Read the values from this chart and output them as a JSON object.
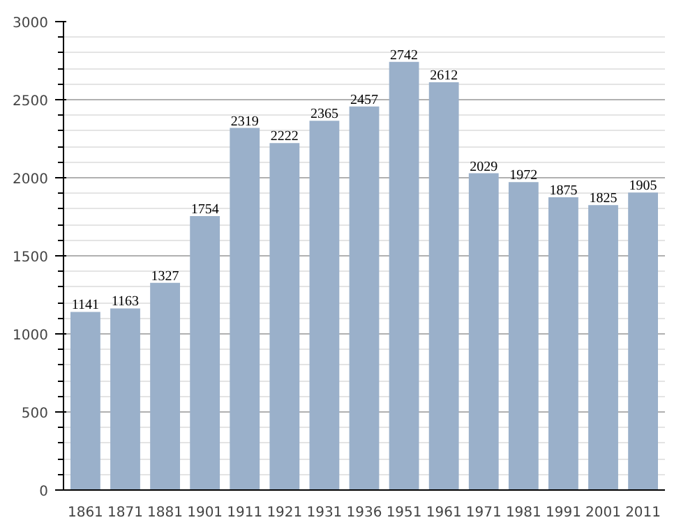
{
  "chart_data": {
    "type": "bar",
    "categories": [
      "1861",
      "1871",
      "1881",
      "1901",
      "1911",
      "1921",
      "1931",
      "1936",
      "1951",
      "1961",
      "1971",
      "1981",
      "1991",
      "2001",
      "2011"
    ],
    "values": [
      1141,
      1163,
      1327,
      1754,
      2319,
      2222,
      2365,
      2457,
      2742,
      2612,
      2029,
      1972,
      1875,
      1825,
      1905
    ],
    "color": "#9ab0ca",
    "data_labels": true,
    "grid": "y",
    "ylim": [
      0,
      3000
    ],
    "yticks": [
      0,
      {
        "value": 100,
        "label": null
      },
      {
        "value": 200,
        "label": null
      },
      {
        "value": 300,
        "label": null
      },
      {
        "value": 400,
        "label": null
      },
      500,
      {
        "value": 600,
        "label": null
      },
      {
        "value": 700,
        "label": null
      },
      {
        "value": 800,
        "label": null
      },
      {
        "value": 900,
        "label": null
      },
      1000,
      {
        "value": 1100,
        "label": null
      },
      {
        "value": 1200,
        "label": null
      },
      {
        "value": 1300,
        "label": null
      },
      {
        "value": 1400,
        "label": null
      },
      1500,
      {
        "value": 1600,
        "label": null
      },
      {
        "value": 1700,
        "label": null
      },
      {
        "value": 1800,
        "label": null
      },
      {
        "value": 1900,
        "label": null
      },
      2000,
      {
        "value": 2100,
        "label": null
      },
      {
        "value": 2200,
        "label": null
      },
      {
        "value": 2300,
        "label": null
      },
      {
        "value": 2400,
        "label": null
      },
      2500,
      {
        "value": 2600,
        "label": null
      },
      {
        "value": 2700,
        "label": null
      },
      {
        "value": 2800,
        "label": null
      },
      {
        "value": 2900,
        "label": null
      },
      3000
    ]
  }
}
